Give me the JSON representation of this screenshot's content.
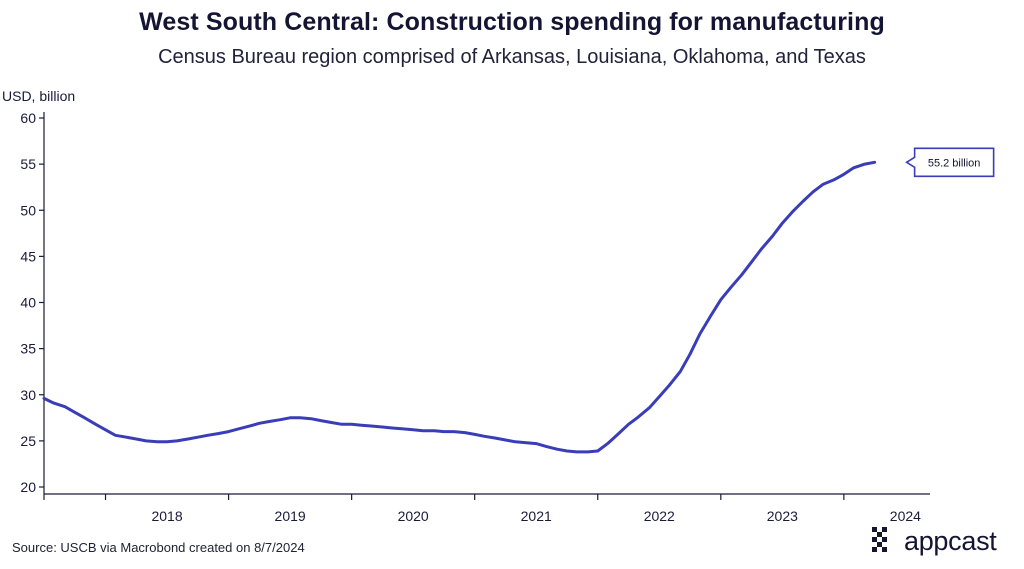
{
  "title": "West South Central: Construction spending for manufacturing",
  "subtitle": "Census Bureau region comprised of Arkansas, Louisiana, Oklahoma, and Texas",
  "source": "Source: USCB via Macrobond created on 8/7/2024",
  "brand": {
    "name": "appcast",
    "logo_icon": "appcast-dots-icon"
  },
  "colors": {
    "line": "#3a3db8",
    "axis": "#1a1a3a",
    "text": "#1a1a3a"
  },
  "chart_data": {
    "type": "line",
    "title": "West South Central: Construction spending for manufacturing",
    "subtitle": "Census Bureau region comprised of Arkansas, Louisiana, Oklahoma, and Texas",
    "ylabel": "USD, billion",
    "xlabel": "",
    "ylim": [
      20,
      60
    ],
    "yticks": [
      20,
      25,
      30,
      35,
      40,
      45,
      50,
      55,
      60
    ],
    "xlim": [
      2017.5,
      2024.7
    ],
    "year_labels": [
      "2018",
      "2019",
      "2020",
      "2021",
      "2022",
      "2023",
      "2024"
    ],
    "grid": false,
    "end_label": "55.2 billion",
    "series": [
      {
        "name": "Construction spending for manufacturing",
        "x": [
          2017.5,
          2017.58,
          2017.67,
          2017.75,
          2017.83,
          2017.92,
          2018.0,
          2018.08,
          2018.17,
          2018.25,
          2018.33,
          2018.42,
          2018.5,
          2018.58,
          2018.67,
          2018.75,
          2018.83,
          2018.92,
          2019.0,
          2019.08,
          2019.17,
          2019.25,
          2019.33,
          2019.42,
          2019.5,
          2019.58,
          2019.67,
          2019.75,
          2019.83,
          2019.92,
          2020.0,
          2020.08,
          2020.17,
          2020.25,
          2020.33,
          2020.42,
          2020.5,
          2020.58,
          2020.67,
          2020.75,
          2020.83,
          2020.92,
          2021.0,
          2021.08,
          2021.17,
          2021.25,
          2021.33,
          2021.42,
          2021.5,
          2021.58,
          2021.67,
          2021.75,
          2021.83,
          2021.92,
          2022.0,
          2022.08,
          2022.17,
          2022.25,
          2022.33,
          2022.42,
          2022.5,
          2022.58,
          2022.67,
          2022.75,
          2022.83,
          2022.92,
          2023.0,
          2023.08,
          2023.17,
          2023.25,
          2023.33,
          2023.42,
          2023.5,
          2023.58,
          2023.67,
          2023.75,
          2023.83,
          2023.92,
          2024.0,
          2024.08,
          2024.17,
          2024.25
        ],
        "values": [
          29.6,
          29.1,
          28.7,
          28.1,
          27.5,
          26.8,
          26.2,
          25.6,
          25.4,
          25.2,
          25.0,
          24.9,
          24.9,
          25.0,
          25.2,
          25.4,
          25.6,
          25.8,
          26.0,
          26.3,
          26.6,
          26.9,
          27.1,
          27.3,
          27.5,
          27.5,
          27.4,
          27.2,
          27.0,
          26.8,
          26.8,
          26.7,
          26.6,
          26.5,
          26.4,
          26.3,
          26.2,
          26.1,
          26.1,
          26.0,
          26.0,
          25.9,
          25.7,
          25.5,
          25.3,
          25.1,
          24.9,
          24.8,
          24.7,
          24.4,
          24.1,
          23.9,
          23.8,
          23.8,
          23.9,
          24.7,
          25.8,
          26.8,
          27.6,
          28.6,
          29.8,
          31.0,
          32.5,
          34.4,
          36.6,
          38.6,
          40.3,
          41.6,
          43.0,
          44.4,
          45.8,
          47.2,
          48.6,
          49.8,
          51.0,
          52.0,
          52.8,
          53.3,
          53.9,
          54.6,
          55.0,
          55.2
        ]
      }
    ]
  }
}
